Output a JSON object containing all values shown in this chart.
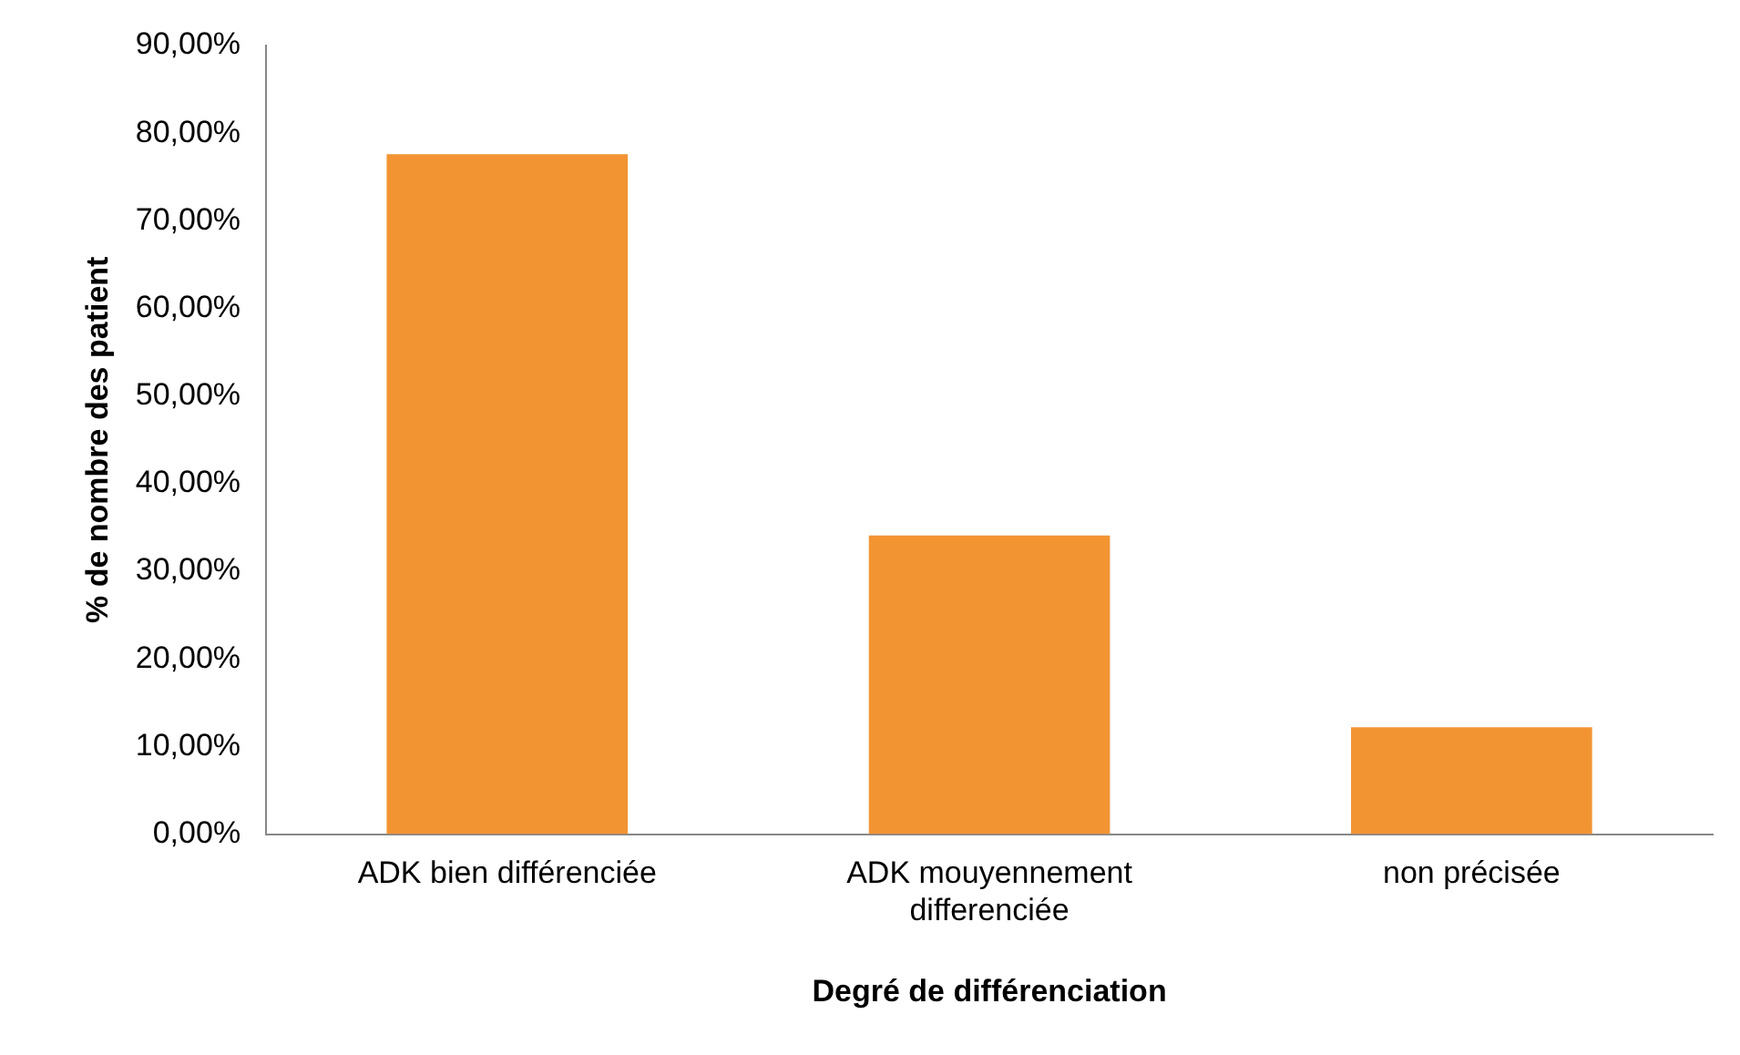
{
  "chart_data": {
    "type": "bar",
    "xlabel": "Degré de différenciation",
    "ylabel": "% de nombre des patient",
    "categories": [
      "ADK bien différenciée",
      "ADK mouyennement differenciée",
      "non précisée"
    ],
    "values": [
      77.6,
      34.1,
      12.2
    ],
    "color": "#f39433",
    "ylim": [
      0,
      90
    ],
    "yticks": [
      {
        "value": 0,
        "label": "0,00%"
      },
      {
        "value": 10,
        "label": "10,00%"
      },
      {
        "value": 20,
        "label": "20,00%"
      },
      {
        "value": 30,
        "label": "30,00%"
      },
      {
        "value": 40,
        "label": "40,00%"
      },
      {
        "value": 50,
        "label": "50,00%"
      },
      {
        "value": 60,
        "label": "60,00%"
      },
      {
        "value": 70,
        "label": "70,00%"
      },
      {
        "value": 80,
        "label": "80,00%"
      },
      {
        "value": 90,
        "label": "90,00%"
      }
    ],
    "grid": false,
    "legend": false
  }
}
